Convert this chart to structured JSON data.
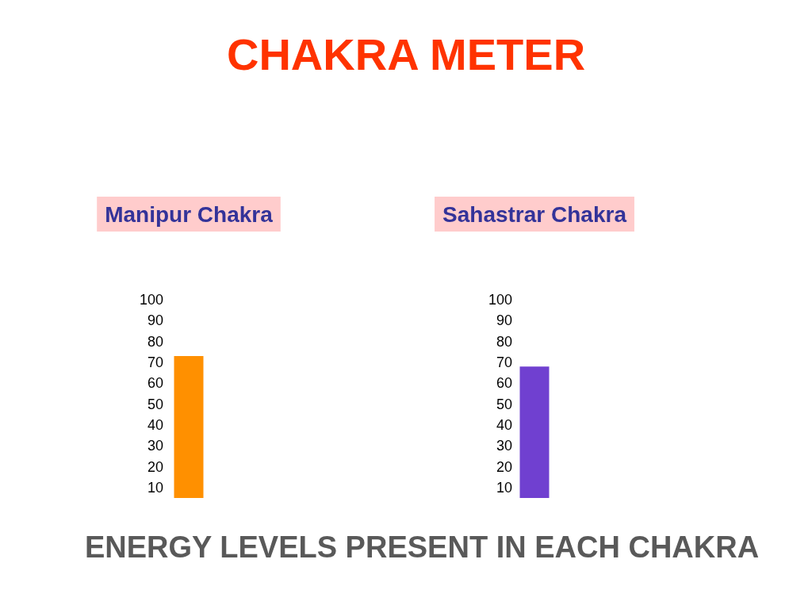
{
  "chart_data": {
    "type": "bar",
    "title": "CHAKRA METER",
    "categories": [
      "Manipur Chakra",
      "Sahastrar Chakra"
    ],
    "series": [
      {
        "values": [
          73,
          null
        ],
        "color": "#ff9000"
      },
      {
        "values": [
          null,
          68
        ],
        "color": "#7040d0",
        "axis": "y2"
      }
    ],
    "ylim": [
      5,
      100
    ],
    "yticks": [
      10,
      20,
      30,
      40,
      50,
      60,
      70,
      80,
      90,
      100
    ],
    "y2lim": [
      5,
      100
    ],
    "y2ticks": [
      10,
      20,
      30,
      40,
      50,
      60,
      70,
      80,
      90,
      100
    ],
    "annotations": [
      "ENERGY LEVELS PRESENT IN EACH CHAKRA"
    ]
  }
}
